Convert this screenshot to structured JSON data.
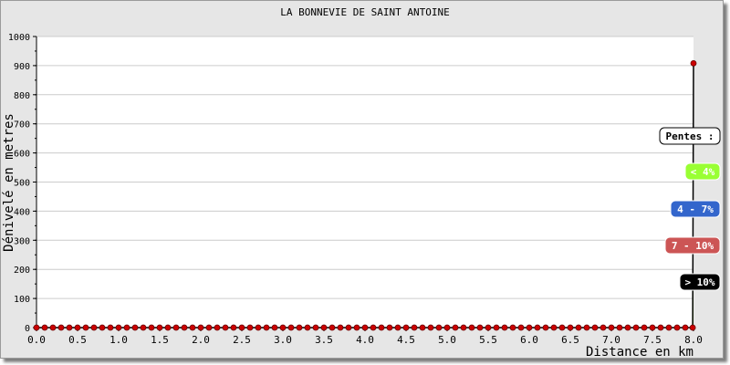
{
  "chart_data": {
    "type": "line",
    "title": "LA BONNEVIE DE SAINT ANTOINE",
    "xlabel": "Distance en km",
    "ylabel": "Dénivelé en metres",
    "xlim": [
      0,
      8.0
    ],
    "ylim": [
      0,
      1000
    ],
    "x_ticks": [
      "0.0",
      "0.5",
      "1.0",
      "1.5",
      "2.0",
      "2.5",
      "3.0",
      "3.5",
      "4.0",
      "4.5",
      "5.0",
      "5.5",
      "6.0",
      "6.5",
      "7.0",
      "7.5",
      "8.0"
    ],
    "y_ticks": [
      "0",
      "100",
      "200",
      "300",
      "400",
      "500",
      "600",
      "700",
      "800",
      "900",
      "1000"
    ],
    "grid": true,
    "series": [
      {
        "x": [
          0.0,
          0.1,
          0.2,
          0.3,
          0.4,
          0.5,
          0.6,
          0.7,
          0.8,
          0.9,
          1.0,
          1.1,
          1.2,
          1.3,
          1.4,
          1.5,
          1.6,
          1.7,
          1.8,
          1.9,
          2.0,
          2.1,
          2.2,
          2.3,
          2.4,
          2.5,
          2.6,
          2.7,
          2.8,
          2.9,
          3.0,
          3.1,
          3.2,
          3.3,
          3.4,
          3.5,
          3.6,
          3.7,
          3.8,
          3.9,
          4.0,
          4.1,
          4.2,
          4.3,
          4.4,
          4.5,
          4.6,
          4.7,
          4.8,
          4.9,
          5.0,
          5.1,
          5.2,
          5.3,
          5.4,
          5.5,
          5.6,
          5.7,
          5.8,
          5.9,
          6.0,
          6.1,
          6.2,
          6.3,
          6.4,
          6.5,
          6.6,
          6.7,
          6.8,
          6.9,
          7.0,
          7.1,
          7.2,
          7.3,
          7.4,
          7.5,
          7.6,
          7.7,
          7.8,
          7.9,
          7.99,
          8.0
        ],
        "y": [
          0,
          0,
          0,
          0,
          0,
          0,
          0,
          0,
          0,
          0,
          0,
          0,
          0,
          0,
          0,
          0,
          0,
          0,
          0,
          0,
          0,
          0,
          0,
          0,
          0,
          0,
          0,
          0,
          0,
          0,
          0,
          0,
          0,
          0,
          0,
          0,
          0,
          0,
          0,
          0,
          0,
          0,
          0,
          0,
          0,
          0,
          0,
          0,
          0,
          0,
          0,
          0,
          0,
          0,
          0,
          0,
          0,
          0,
          0,
          0,
          0,
          0,
          0,
          0,
          0,
          0,
          0,
          0,
          0,
          0,
          0,
          0,
          0,
          0,
          0,
          0,
          0,
          0,
          0,
          0,
          0,
          908
        ]
      }
    ],
    "legend": {
      "position": "right",
      "title": "Pentes :",
      "items": [
        {
          "label": "< 4%",
          "color": "#99ff33",
          "text_color": "#ffffff"
        },
        {
          "label": "4 - 7%",
          "color": "#3366cc",
          "text_color": "#ffffff"
        },
        {
          "label": "7 - 10%",
          "color": "#cc5555",
          "text_color": "#ffffff"
        },
        {
          "label": "> 10%",
          "color": "#000000",
          "text_color": "#ffffff"
        }
      ]
    },
    "colors": {
      "line": "#000000",
      "marker": "#cc0000",
      "gradient_fill": "#99ff33",
      "grid": "#cccccc"
    }
  }
}
